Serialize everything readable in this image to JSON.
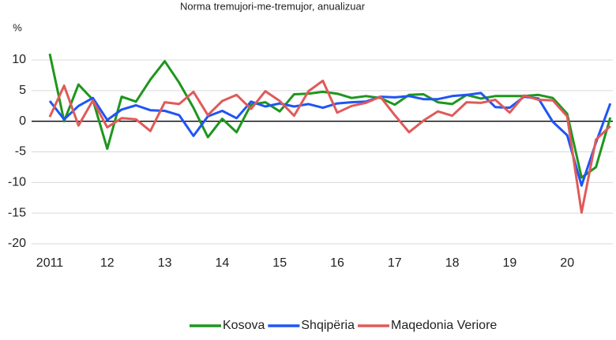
{
  "chart_data": {
    "type": "line",
    "subtitle": "Norma tremujori-me-tremujor, anualizuar",
    "y_label": "%",
    "categories": [
      "2011",
      null,
      null,
      null,
      "12",
      null,
      null,
      null,
      "13",
      null,
      null,
      null,
      "14",
      null,
      null,
      null,
      "15",
      null,
      null,
      null,
      "16",
      null,
      null,
      null,
      "17",
      null,
      null,
      null,
      "18",
      null,
      null,
      null,
      "19",
      null,
      null,
      null,
      "20",
      null,
      null,
      null
    ],
    "series": [
      {
        "name": "Kosova",
        "color": "#1e961e",
        "values": [
          11,
          0,
          6,
          3.5,
          -4.5,
          4,
          3.2,
          6.8,
          9.8,
          6.3,
          2.2,
          -2.6,
          0.4,
          -1.8,
          2.7,
          3.1,
          1.6,
          4.4,
          4.5,
          4.8,
          4.5,
          3.8,
          4.1,
          3.8,
          2.7,
          4.3,
          4.4,
          3.1,
          2.8,
          4.3,
          3.7,
          4.1,
          4.1,
          4.1,
          4.3,
          3.8,
          1.2,
          -9.2,
          -7.5,
          0.6
        ]
      },
      {
        "name": "Shqipëria",
        "color": "#1f55f5",
        "values": [
          3.3,
          0.3,
          2.5,
          3.8,
          0.2,
          1.9,
          2.6,
          1.8,
          1.7,
          1.0,
          -2.4,
          0.8,
          1.7,
          0.5,
          3.2,
          2.4,
          2.9,
          2.4,
          2.8,
          2.2,
          2.9,
          3.1,
          3.2,
          4.0,
          3.9,
          4.1,
          3.6,
          3.6,
          4.1,
          4.3,
          4.6,
          2.3,
          2.2,
          4.0,
          3.7,
          -0.1,
          -2.3,
          -10.5,
          -3.5,
          2.9
        ]
      },
      {
        "name": "Maqedonia Veriore",
        "color": "#e05a5a",
        "values": [
          0.7,
          5.8,
          -0.7,
          3.4,
          -1.0,
          0.5,
          0.3,
          -1.6,
          3.1,
          2.8,
          4.8,
          1.0,
          3.3,
          4.3,
          2.0,
          4.9,
          3.3,
          0.9,
          4.9,
          6.6,
          1.4,
          2.5,
          3.0,
          4.0,
          1.0,
          -1.8,
          0.1,
          1.6,
          0.9,
          3.1,
          3.0,
          3.5,
          1.4,
          4.2,
          3.5,
          3.4,
          0.8,
          -14.9,
          -3.0,
          -0.8
        ]
      }
    ],
    "ylim": [
      -20,
      10
    ],
    "yticks": [
      -20,
      -15,
      -10,
      -5,
      0,
      5,
      10
    ],
    "grid": true,
    "legend": "bottom"
  }
}
